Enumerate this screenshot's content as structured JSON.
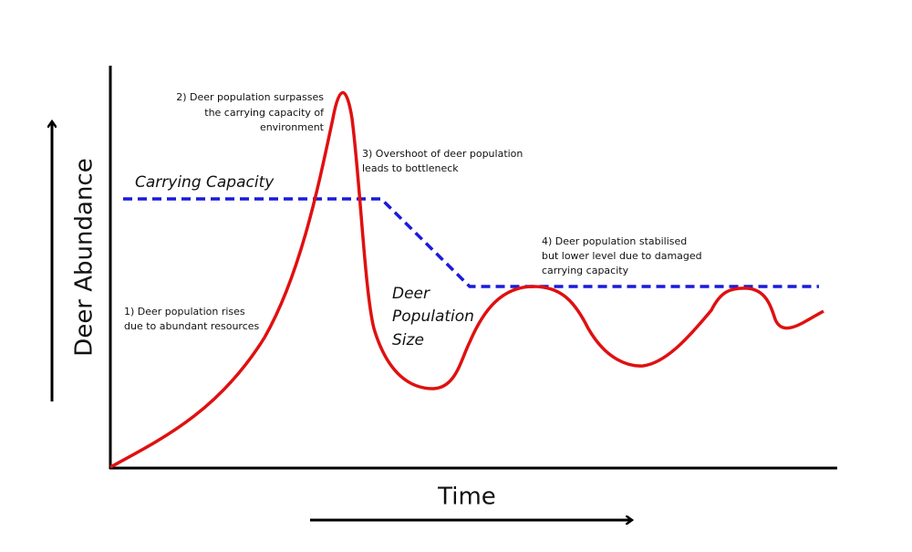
{
  "axes": {
    "y_label": "Deer Abundance",
    "x_label": "Time"
  },
  "curves": {
    "capacity_label": "Carrying Capacity",
    "population_label": [
      "Deer",
      "Population",
      "Size"
    ]
  },
  "annotations": [
    {
      "lines": [
        "1) Deer population rises",
        "due to abundant resources"
      ]
    },
    {
      "lines": [
        "2) Deer population surpasses",
        "the carrying capacity of",
        "environment"
      ]
    },
    {
      "lines": [
        "3) Overshoot of deer population",
        "leads to bottleneck"
      ]
    },
    {
      "lines": [
        "4) Deer population stabilised",
        "but lower level due to damaged",
        "carrying capacity"
      ]
    }
  ]
}
